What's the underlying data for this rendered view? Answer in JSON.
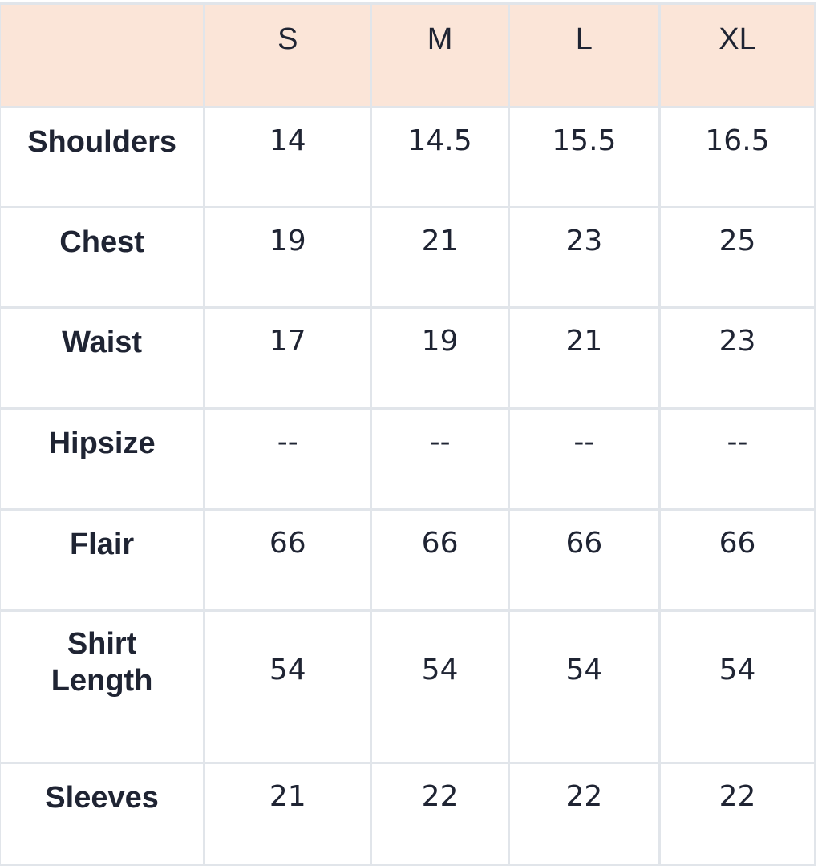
{
  "table": {
    "headers": [
      "",
      "S",
      "M",
      "L",
      "XL"
    ],
    "rows": [
      {
        "label": "Shoulders",
        "values": [
          "14",
          "14.5",
          "15.5",
          "16.5"
        ]
      },
      {
        "label": "Chest",
        "values": [
          "19",
          "21",
          "23",
          "25"
        ]
      },
      {
        "label": "Waist",
        "values": [
          "17",
          "19",
          "21",
          "23"
        ]
      },
      {
        "label": "Hipsize",
        "values": [
          "--",
          "--",
          "--",
          "--"
        ]
      },
      {
        "label": "Flair",
        "values": [
          "66",
          "66",
          "66",
          "66"
        ]
      },
      {
        "label": "Shirt Length",
        "values": [
          "54",
          "54",
          "54",
          "54"
        ]
      },
      {
        "label": "Sleeves",
        "values": [
          "21",
          "22",
          "22",
          "22"
        ]
      }
    ],
    "header_bg": "#fbe5d8",
    "border_color": "#e1e5ea"
  }
}
